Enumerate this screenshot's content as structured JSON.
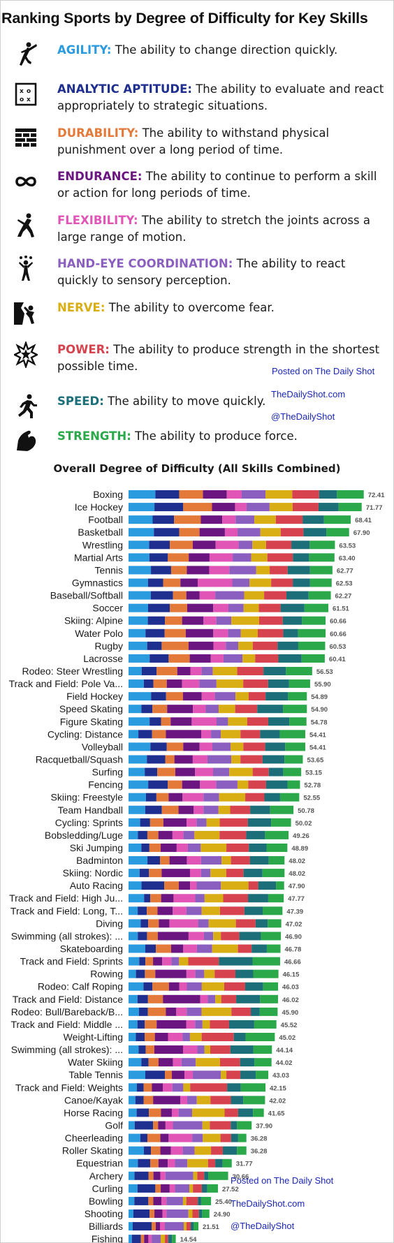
{
  "title": "Ranking Sports by Degree of Difficulty for Key Skills",
  "skills": [
    {
      "name": "AGILITY:",
      "desc": "The ability to change direction quickly.",
      "color": "#2b9be0",
      "icon": "kick-figure-icon"
    },
    {
      "name": "ANALYTIC APTITUDE:",
      "desc": "The ability to evaluate and react appropriately to strategic situations.",
      "color": "#1f2f8f",
      "icon": "strategy-board-icon"
    },
    {
      "name": "DURABILITY:",
      "desc": "The ability to withstand physical punishment over a long period of time.",
      "color": "#e47a3a",
      "icon": "brick-wall-icon"
    },
    {
      "name": "ENDURANCE:",
      "desc": "The ability to continue to perform a skill or action for long periods of time.",
      "color": "#6a1580",
      "icon": "infinity-icon"
    },
    {
      "name": "FLEXIBILITY:",
      "desc": "The ability to stretch the joints across a large range of motion.",
      "color": "#e055b5",
      "icon": "stretching-figure-icon"
    },
    {
      "name": "HAND-EYE COORDINATION:",
      "desc": "The ability to react quickly to sensory perception.",
      "color": "#8b5fc0",
      "icon": "juggler-icon"
    },
    {
      "name": "NERVE:",
      "desc": "The ability to overcome fear.",
      "color": "#d9ae14",
      "icon": "climber-icon"
    },
    {
      "name": "POWER:",
      "desc": "The ability to produce strength in the shortest possible time.",
      "color": "#d6424e",
      "icon": "burst-icon"
    },
    {
      "name": "SPEED:",
      "desc": "The ability to move quickly.",
      "color": "#1c6f78",
      "icon": "runner-icon"
    },
    {
      "name": "STRENGTH:",
      "desc": "The ability to produce force.",
      "color": "#2aa84a",
      "icon": "flexed-arm-icon"
    }
  ],
  "credits": {
    "posted": "Posted on The Daily Shot",
    "site": "TheDailyShot.com",
    "handle": "@TheDailyShot"
  },
  "chart_data": {
    "type": "bar",
    "stacked": true,
    "orientation": "horizontal",
    "title": "Overall Degree of Difficulty (All Skills Combined)",
    "series_names": [
      "Agility",
      "Analytic Aptitude",
      "Durability",
      "Endurance",
      "Flexibility",
      "Hand-Eye Coordination",
      "Nerve",
      "Power",
      "Speed",
      "Strength"
    ],
    "colors": [
      "#2b9be0",
      "#1f2f8f",
      "#e47a3a",
      "#6a1580",
      "#e055b5",
      "#8b5fc0",
      "#d9ae14",
      "#d6424e",
      "#1c6f78",
      "#2aa84a"
    ],
    "categories": [
      "Boxing",
      "Ice Hockey",
      "Football",
      "Basketball",
      "Wrestling",
      "Martial Arts",
      "Tennis",
      "Gymnastics",
      "Baseball/Softball",
      "Soccer",
      "Skiing: Alpine",
      "Water Polo",
      "Rugby",
      "Lacrosse",
      "Rodeo: Steer Wrestling",
      "Track and Field: Pole Va...",
      "Field Hockey",
      "Speed Skating",
      "Figure Skating",
      "Cycling: Distance",
      "Volleyball",
      "Racquetball/Squash",
      "Surfing",
      "Fencing",
      "Skiing: Freestyle",
      "Team Handball",
      "Cycling: Sprints",
      "Bobsledding/Luge",
      "Ski Jumping",
      "Badminton",
      "Skiing: Nordic",
      "Auto Racing",
      "Track and Field: High Ju...",
      "Track and Field: Long, T...",
      "Diving",
      "Swimming (all strokes): ...",
      "Skateboarding",
      "Track and Field: Sprints",
      "Rowing",
      "Rodeo: Calf Roping",
      "Track and Field: Distance",
      "Rodeo: Bull/Bareback/B...",
      "Track and Field: Middle ...",
      "Weight-Lifting",
      "Swimming (all strokes): ...",
      "Water Skiing",
      "Table Tennis",
      "Track and Field: Weights",
      "Canoe/Kayak",
      "Horse Racing",
      "Golf",
      "Cheerleading",
      "Roller Skating",
      "Equestrian",
      "Archery",
      "Curling",
      "Bowling",
      "Shooting",
      "Billiards",
      "Fishing"
    ],
    "totals": [
      72.41,
      71.77,
      68.41,
      67.9,
      63.53,
      63.4,
      62.77,
      62.53,
      62.27,
      61.51,
      60.66,
      60.66,
      60.53,
      60.41,
      56.53,
      55.9,
      54.89,
      54.9,
      54.78,
      54.41,
      54.41,
      53.65,
      53.15,
      52.78,
      52.55,
      50.78,
      50.02,
      49.26,
      48.89,
      48.02,
      48.02,
      47.9,
      47.77,
      47.39,
      47.02,
      46.9,
      46.78,
      46.66,
      46.15,
      46.03,
      46.02,
      45.9,
      45.52,
      45.02,
      44.14,
      44.02,
      43.03,
      42.15,
      42.02,
      41.65,
      37.9,
      36.28,
      36.28,
      31.77,
      30.66,
      27.52,
      25.4,
      24.9,
      21.51,
      14.54
    ],
    "shares": [
      [
        0.09,
        0.08,
        0.08,
        0.08,
        0.05,
        0.08,
        0.09,
        0.09,
        0.06,
        0.09
      ],
      [
        0.09,
        0.1,
        0.1,
        0.08,
        0.04,
        0.08,
        0.08,
        0.09,
        0.07,
        0.08
      ],
      [
        0.09,
        0.08,
        0.1,
        0.08,
        0.05,
        0.07,
        0.08,
        0.1,
        0.08,
        0.1
      ],
      [
        0.1,
        0.1,
        0.08,
        0.1,
        0.05,
        0.09,
        0.08,
        0.09,
        0.09,
        0.09
      ],
      [
        0.09,
        0.09,
        0.1,
        0.1,
        0.1,
        0.06,
        0.06,
        0.11,
        0.08,
        0.11
      ],
      [
        0.09,
        0.08,
        0.09,
        0.09,
        0.1,
        0.08,
        0.07,
        0.11,
        0.07,
        0.11
      ],
      [
        0.1,
        0.09,
        0.07,
        0.1,
        0.09,
        0.12,
        0.06,
        0.08,
        0.1,
        0.1
      ],
      [
        0.09,
        0.07,
        0.08,
        0.08,
        0.16,
        0.08,
        0.1,
        0.1,
        0.08,
        0.1
      ],
      [
        0.1,
        0.1,
        0.06,
        0.06,
        0.07,
        0.13,
        0.09,
        0.1,
        0.1,
        0.1
      ],
      [
        0.09,
        0.1,
        0.08,
        0.12,
        0.07,
        0.07,
        0.07,
        0.1,
        0.11,
        0.11
      ],
      [
        0.09,
        0.08,
        0.08,
        0.1,
        0.06,
        0.07,
        0.13,
        0.11,
        0.09,
        0.11
      ],
      [
        0.08,
        0.09,
        0.1,
        0.13,
        0.07,
        0.06,
        0.08,
        0.12,
        0.07,
        0.13
      ],
      [
        0.09,
        0.07,
        0.13,
        0.12,
        0.06,
        0.06,
        0.07,
        0.12,
        0.1,
        0.13
      ],
      [
        0.1,
        0.09,
        0.1,
        0.1,
        0.06,
        0.09,
        0.06,
        0.11,
        0.11,
        0.11
      ],
      [
        0.07,
        0.08,
        0.11,
        0.07,
        0.06,
        0.06,
        0.13,
        0.14,
        0.12,
        0.14
      ],
      [
        0.08,
        0.05,
        0.07,
        0.08,
        0.09,
        0.09,
        0.14,
        0.13,
        0.11,
        0.11
      ],
      [
        0.12,
        0.08,
        0.09,
        0.1,
        0.07,
        0.11,
        0.07,
        0.09,
        0.12,
        0.1
      ],
      [
        0.07,
        0.06,
        0.08,
        0.14,
        0.07,
        0.07,
        0.09,
        0.12,
        0.14,
        0.13
      ],
      [
        0.11,
        0.06,
        0.05,
        0.11,
        0.13,
        0.06,
        0.1,
        0.11,
        0.11,
        0.09
      ],
      [
        0.05,
        0.07,
        0.07,
        0.18,
        0.05,
        0.05,
        0.1,
        0.1,
        0.1,
        0.13
      ],
      [
        0.12,
        0.09,
        0.09,
        0.09,
        0.07,
        0.1,
        0.07,
        0.12,
        0.11,
        0.11
      ],
      [
        0.1,
        0.1,
        0.05,
        0.1,
        0.08,
        0.13,
        0.05,
        0.12,
        0.12,
        0.1
      ],
      [
        0.09,
        0.07,
        0.1,
        0.11,
        0.1,
        0.09,
        0.13,
        0.09,
        0.08,
        0.1
      ],
      [
        0.11,
        0.11,
        0.08,
        0.1,
        0.09,
        0.12,
        0.06,
        0.1,
        0.12,
        0.07
      ],
      [
        0.1,
        0.06,
        0.07,
        0.08,
        0.12,
        0.09,
        0.15,
        0.11,
        0.09,
        0.11
      ],
      [
        0.1,
        0.1,
        0.1,
        0.09,
        0.06,
        0.09,
        0.07,
        0.12,
        0.12,
        0.14
      ],
      [
        0.07,
        0.06,
        0.08,
        0.14,
        0.06,
        0.06,
        0.08,
        0.17,
        0.14,
        0.12
      ],
      [
        0.06,
        0.06,
        0.07,
        0.09,
        0.07,
        0.07,
        0.16,
        0.17,
        0.12,
        0.15
      ],
      [
        0.08,
        0.05,
        0.07,
        0.1,
        0.07,
        0.08,
        0.16,
        0.14,
        0.11,
        0.13
      ],
      [
        0.12,
        0.08,
        0.06,
        0.11,
        0.09,
        0.13,
        0.06,
        0.12,
        0.12,
        0.1
      ],
      [
        0.07,
        0.06,
        0.08,
        0.18,
        0.07,
        0.06,
        0.1,
        0.11,
        0.12,
        0.14
      ],
      [
        0.08,
        0.14,
        0.09,
        0.07,
        0.04,
        0.15,
        0.17,
        0.06,
        0.11,
        0.05
      ],
      [
        0.1,
        0.04,
        0.07,
        0.08,
        0.14,
        0.06,
        0.12,
        0.16,
        0.13,
        0.1
      ],
      [
        0.06,
        0.06,
        0.07,
        0.1,
        0.09,
        0.1,
        0.12,
        0.16,
        0.12,
        0.13
      ],
      [
        0.08,
        0.05,
        0.07,
        0.07,
        0.19,
        0.07,
        0.18,
        0.13,
        0.08,
        0.09
      ],
      [
        0.06,
        0.06,
        0.07,
        0.2,
        0.1,
        0.06,
        0.05,
        0.12,
        0.14,
        0.13
      ],
      [
        0.11,
        0.07,
        0.1,
        0.08,
        0.09,
        0.1,
        0.17,
        0.09,
        0.1,
        0.09
      ],
      [
        0.07,
        0.04,
        0.05,
        0.06,
        0.06,
        0.05,
        0.06,
        0.2,
        0.22,
        0.18
      ],
      [
        0.05,
        0.06,
        0.07,
        0.21,
        0.06,
        0.06,
        0.07,
        0.14,
        0.12,
        0.17
      ],
      [
        0.1,
        0.06,
        0.11,
        0.07,
        0.05,
        0.1,
        0.15,
        0.14,
        0.12,
        0.1
      ],
      [
        0.06,
        0.07,
        0.1,
        0.25,
        0.05,
        0.05,
        0.04,
        0.1,
        0.16,
        0.12
      ],
      [
        0.07,
        0.06,
        0.12,
        0.07,
        0.07,
        0.1,
        0.2,
        0.13,
        0.06,
        0.12
      ],
      [
        0.06,
        0.05,
        0.08,
        0.2,
        0.06,
        0.05,
        0.05,
        0.13,
        0.17,
        0.15
      ],
      [
        0.05,
        0.06,
        0.07,
        0.09,
        0.1,
        0.05,
        0.08,
        0.22,
        0.08,
        0.2
      ],
      [
        0.07,
        0.05,
        0.06,
        0.2,
        0.1,
        0.05,
        0.04,
        0.14,
        0.16,
        0.13
      ],
      [
        0.09,
        0.05,
        0.07,
        0.1,
        0.06,
        0.1,
        0.17,
        0.14,
        0.1,
        0.12
      ],
      [
        0.12,
        0.14,
        0.05,
        0.09,
        0.06,
        0.2,
        0.04,
        0.1,
        0.11,
        0.09
      ],
      [
        0.06,
        0.05,
        0.06,
        0.08,
        0.07,
        0.08,
        0.05,
        0.27,
        0.1,
        0.18
      ],
      [
        0.05,
        0.06,
        0.07,
        0.2,
        0.05,
        0.07,
        0.1,
        0.15,
        0.09,
        0.16
      ],
      [
        0.06,
        0.09,
        0.09,
        0.08,
        0.05,
        0.1,
        0.24,
        0.1,
        0.11,
        0.08
      ],
      [
        0.05,
        0.15,
        0.04,
        0.06,
        0.06,
        0.24,
        0.06,
        0.17,
        0.05,
        0.12
      ],
      [
        0.1,
        0.06,
        0.11,
        0.07,
        0.2,
        0.09,
        0.15,
        0.09,
        0.06,
        0.07
      ],
      [
        0.13,
        0.06,
        0.08,
        0.09,
        0.1,
        0.1,
        0.14,
        0.1,
        0.12,
        0.08
      ],
      [
        0.09,
        0.12,
        0.08,
        0.09,
        0.07,
        0.12,
        0.2,
        0.07,
        0.07,
        0.09
      ],
      [
        0.06,
        0.14,
        0.05,
        0.07,
        0.05,
        0.28,
        0.04,
        0.07,
        0.04,
        0.2
      ],
      [
        0.1,
        0.2,
        0.06,
        0.1,
        0.06,
        0.16,
        0.04,
        0.1,
        0.06,
        0.12
      ],
      [
        0.07,
        0.17,
        0.06,
        0.1,
        0.06,
        0.2,
        0.04,
        0.14,
        0.04,
        0.12
      ],
      [
        0.06,
        0.2,
        0.06,
        0.1,
        0.05,
        0.27,
        0.05,
        0.08,
        0.04,
        0.09
      ],
      [
        0.06,
        0.27,
        0.06,
        0.06,
        0.07,
        0.27,
        0.04,
        0.06,
        0.04,
        0.07
      ],
      [
        0.07,
        0.19,
        0.07,
        0.09,
        0.07,
        0.19,
        0.09,
        0.07,
        0.08,
        0.08
      ]
    ]
  }
}
